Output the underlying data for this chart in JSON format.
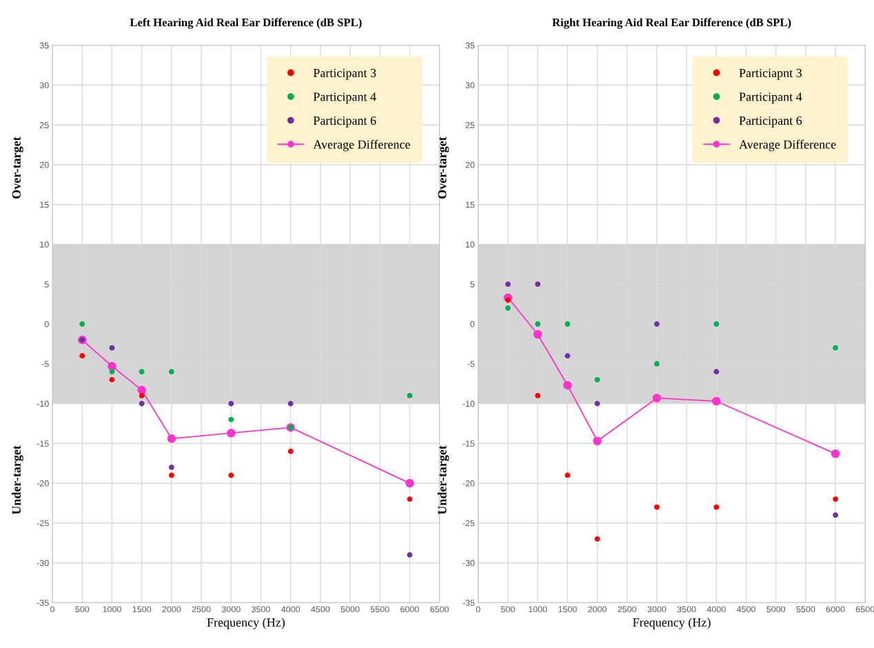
{
  "chart_data": [
    {
      "type": "scatter",
      "title": "Left Hearing Aid Real Ear Difference (dB SPL)",
      "xlabel": "Frequency (Hz)",
      "annotations": [
        "Over-target",
        "Under-target"
      ],
      "x": [
        500,
        1000,
        1500,
        2000,
        3000,
        4000,
        6000
      ],
      "series": [
        {
          "name": "Participant 3",
          "color": "#ff0000",
          "values": [
            -4,
            -7,
            -9,
            -19,
            -19,
            -16,
            -22
          ]
        },
        {
          "name": "Participant 4",
          "color": "#00b050",
          "values": [
            0,
            -6,
            -6,
            -6,
            -12,
            -13,
            -9
          ]
        },
        {
          "name": "Participant 6",
          "color": "#7030a0",
          "values": [
            -2,
            -3,
            -10,
            -18,
            -10,
            -10,
            -29
          ]
        },
        {
          "name": "Average Difference",
          "type": "line",
          "color": "#ff33cc",
          "values": [
            -2,
            -5.3,
            -8.3,
            -14.4,
            -13.7,
            -13,
            -20
          ]
        }
      ],
      "xlim": [
        0,
        6500
      ],
      "xticks": [
        0,
        500,
        1000,
        1500,
        2000,
        2500,
        3000,
        3500,
        4000,
        4500,
        5000,
        5500,
        6000,
        6500
      ],
      "ylim": [
        -35,
        35
      ],
      "yticks": [
        -35,
        -30,
        -25,
        -20,
        -15,
        -10,
        -5,
        0,
        5,
        10,
        15,
        20,
        25,
        30,
        35
      ],
      "bands": [
        {
          "axis": "y",
          "from": -10,
          "to": 10,
          "color": "#d4d4d4"
        }
      ],
      "grid": true,
      "legend": "top right",
      "marker": "circle"
    },
    {
      "type": "scatter",
      "title": "Right Hearing Aid Real Ear Difference (dB SPL)",
      "xlabel": "Frequency (Hz)",
      "annotations": [
        "Over-target",
        "Under-target"
      ],
      "x": [
        500,
        1000,
        1500,
        2000,
        3000,
        4000,
        6000
      ],
      "series": [
        {
          "name": "Particiapnt 3",
          "color": "#ff0000",
          "values": [
            3,
            -9,
            -19,
            -27,
            -23,
            -23,
            -22
          ]
        },
        {
          "name": "Participant 4",
          "color": "#00b050",
          "values": [
            2,
            0,
            0,
            -7,
            -5,
            0,
            -3
          ]
        },
        {
          "name": "Participant 6",
          "color": "#7030a0",
          "values": [
            5,
            5,
            -4,
            -10,
            0,
            -6,
            -24
          ]
        },
        {
          "name": "Average Difference",
          "type": "line",
          "color": "#ff33cc",
          "values": [
            3.3,
            -1.3,
            -7.7,
            -14.7,
            -9.3,
            -9.7,
            -16.3
          ]
        }
      ],
      "xlim": [
        0,
        6500
      ],
      "xticks": [
        0,
        500,
        1000,
        1500,
        2000,
        2500,
        3000,
        3500,
        4000,
        4500,
        5000,
        5500,
        6000,
        6500
      ],
      "ylim": [
        -35,
        35
      ],
      "yticks": [
        -35,
        -30,
        -25,
        -20,
        -15,
        -10,
        -5,
        0,
        5,
        10,
        15,
        20,
        25,
        30,
        35
      ],
      "bands": [
        {
          "axis": "y",
          "from": -10,
          "to": 10,
          "color": "#d4d4d4"
        }
      ],
      "grid": true,
      "legend": "top right",
      "marker": "circle"
    }
  ]
}
